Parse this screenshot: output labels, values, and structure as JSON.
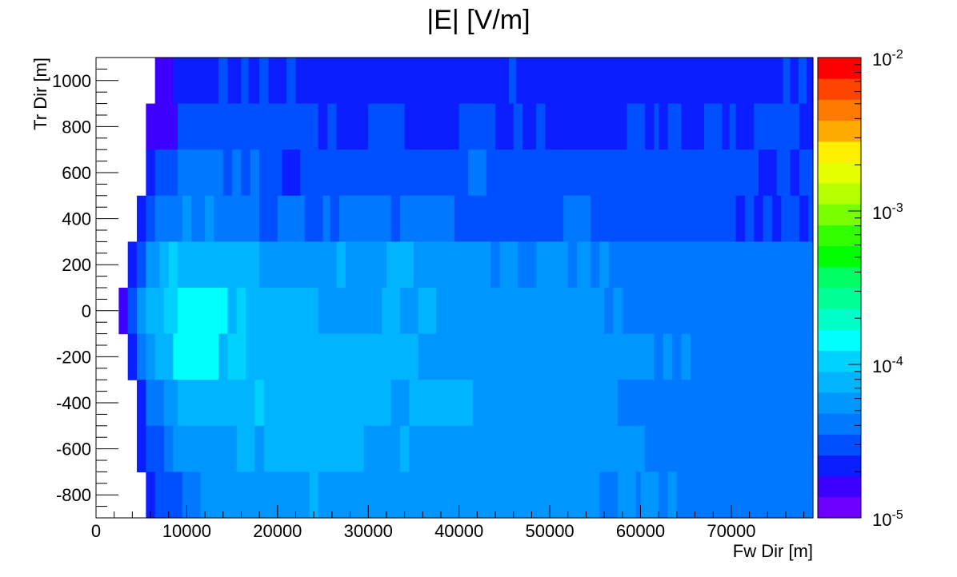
{
  "chart_data": {
    "type": "heatmap",
    "title": "|E| [V/m]",
    "xlabel": "Fw Dir [m]",
    "ylabel": "Tr Dir [m]",
    "xlim": [
      0,
      79000
    ],
    "ylim": [
      -900,
      1100
    ],
    "x_ticks": [
      0,
      10000,
      20000,
      30000,
      40000,
      50000,
      60000,
      70000
    ],
    "y_ticks": [
      -800,
      -600,
      -400,
      -200,
      0,
      200,
      400,
      600,
      800,
      1000
    ],
    "x_tick_labels": [
      "0",
      "10000",
      "20000",
      "30000",
      "40000",
      "50000",
      "60000",
      "70000"
    ],
    "y_tick_labels": [
      "-800",
      "-600",
      "-400",
      "-200",
      "0",
      "200",
      "400",
      "600",
      "800",
      "1000"
    ],
    "log_scale_z": true,
    "zlim": [
      1e-05,
      0.01
    ],
    "colorbar": {
      "labels": [
        {
          "base": "10",
          "exp": "-5",
          "value": 1e-05
        },
        {
          "base": "10",
          "exp": "-4",
          "value": 0.0001
        },
        {
          "base": "10",
          "exp": "-3",
          "value": 0.001
        },
        {
          "base": "10",
          "exp": "-2",
          "value": 0.01
        }
      ],
      "colors": [
        "#6e00ff",
        "#3d00ff",
        "#0a1eff",
        "#0050ff",
        "#0078ff",
        "#0096ff",
        "#00b4ff",
        "#00d2ff",
        "#00ffff",
        "#00ffc8",
        "#00ff96",
        "#00ff64",
        "#00ff00",
        "#32ff00",
        "#78ff00",
        "#b4ff00",
        "#e6ff00",
        "#ffee00",
        "#ffaa00",
        "#ff7a00",
        "#ff4400",
        "#ff0000"
      ]
    },
    "colors": {
      "frame": "#000000",
      "background": "#ffffff"
    },
    "rows": [
      {
        "y0": 900,
        "y1": 1100,
        "cells": [
          [
            6500,
            8500,
            1
          ],
          [
            8500,
            13500,
            2
          ],
          [
            13500,
            14500,
            3
          ],
          [
            14500,
            16000,
            2
          ],
          [
            16000,
            16800,
            3
          ],
          [
            16800,
            18000,
            2
          ],
          [
            18000,
            19000,
            3
          ],
          [
            19000,
            21000,
            2
          ],
          [
            21000,
            22000,
            3
          ],
          [
            22000,
            45500,
            2
          ],
          [
            45500,
            46300,
            3
          ],
          [
            46300,
            75700,
            2
          ],
          [
            75700,
            76500,
            3
          ],
          [
            76500,
            77400,
            2
          ],
          [
            77400,
            78300,
            3
          ],
          [
            78300,
            79000,
            2
          ]
        ]
      },
      {
        "y0": 700,
        "y1": 900,
        "cells": [
          [
            5500,
            7500,
            1
          ],
          [
            7500,
            9000,
            1
          ],
          [
            9000,
            24500,
            3
          ],
          [
            24500,
            25500,
            2
          ],
          [
            25500,
            26500,
            3
          ],
          [
            26500,
            30000,
            2
          ],
          [
            30000,
            34000,
            3
          ],
          [
            34000,
            40000,
            2
          ],
          [
            40000,
            44000,
            3
          ],
          [
            44000,
            46000,
            2
          ],
          [
            46000,
            47000,
            3
          ],
          [
            47000,
            48500,
            2
          ],
          [
            48500,
            49500,
            3
          ],
          [
            49500,
            58500,
            2
          ],
          [
            58500,
            60500,
            3
          ],
          [
            60500,
            61500,
            2
          ],
          [
            61500,
            62000,
            3
          ],
          [
            62000,
            63000,
            2
          ],
          [
            63000,
            64500,
            3
          ],
          [
            64500,
            67000,
            2
          ],
          [
            67000,
            69000,
            3
          ],
          [
            69000,
            69800,
            2
          ],
          [
            69800,
            70500,
            3
          ],
          [
            70500,
            72500,
            2
          ],
          [
            72500,
            77500,
            3
          ],
          [
            77500,
            79000,
            2
          ]
        ]
      },
      {
        "y0": 500,
        "y1": 700,
        "cells": [
          [
            5500,
            6500,
            2
          ],
          [
            6500,
            7500,
            3
          ],
          [
            7500,
            9000,
            3
          ],
          [
            9000,
            14000,
            4
          ],
          [
            14000,
            15000,
            3
          ],
          [
            15000,
            16000,
            4
          ],
          [
            16000,
            17000,
            3
          ],
          [
            17000,
            18000,
            4
          ],
          [
            18000,
            20500,
            3
          ],
          [
            20500,
            22500,
            2
          ],
          [
            22500,
            41000,
            3
          ],
          [
            41000,
            43000,
            4
          ],
          [
            43000,
            73000,
            3
          ],
          [
            73000,
            75000,
            2
          ],
          [
            75000,
            76500,
            3
          ],
          [
            76500,
            77500,
            2
          ],
          [
            77500,
            79000,
            3
          ]
        ]
      },
      {
        "y0": 300,
        "y1": 500,
        "cells": [
          [
            4500,
            5500,
            2
          ],
          [
            5500,
            6500,
            3
          ],
          [
            6500,
            7500,
            4
          ],
          [
            7500,
            9500,
            4
          ],
          [
            9500,
            10500,
            5
          ],
          [
            10500,
            12000,
            4
          ],
          [
            12000,
            13000,
            5
          ],
          [
            13000,
            18000,
            4
          ],
          [
            18000,
            20000,
            3
          ],
          [
            20000,
            23000,
            4
          ],
          [
            23000,
            25000,
            3
          ],
          [
            25000,
            25800,
            4
          ],
          [
            25800,
            26800,
            3
          ],
          [
            26800,
            32500,
            4
          ],
          [
            32500,
            33500,
            3
          ],
          [
            33500,
            39500,
            4
          ],
          [
            39500,
            51500,
            3
          ],
          [
            51500,
            54500,
            4
          ],
          [
            54500,
            70500,
            3
          ],
          [
            70500,
            71500,
            2
          ],
          [
            71500,
            72500,
            3
          ],
          [
            72500,
            73500,
            2
          ],
          [
            73500,
            74500,
            3
          ],
          [
            74500,
            75500,
            2
          ],
          [
            75500,
            77500,
            3
          ],
          [
            77500,
            78500,
            2
          ],
          [
            78500,
            79000,
            3
          ]
        ]
      },
      {
        "y0": 100,
        "y1": 300,
        "cells": [
          [
            3500,
            4500,
            2
          ],
          [
            4500,
            5500,
            3
          ],
          [
            5500,
            6500,
            5
          ],
          [
            6500,
            7000,
            5
          ],
          [
            7000,
            8000,
            6
          ],
          [
            8000,
            9000,
            7
          ],
          [
            9000,
            18000,
            6
          ],
          [
            18000,
            26500,
            5
          ],
          [
            26500,
            27500,
            6
          ],
          [
            27500,
            32000,
            5
          ],
          [
            32000,
            35000,
            6
          ],
          [
            35000,
            43500,
            5
          ],
          [
            43500,
            44500,
            4
          ],
          [
            44500,
            46500,
            5
          ],
          [
            46500,
            48500,
            4
          ],
          [
            48500,
            52000,
            5
          ],
          [
            52000,
            53000,
            4
          ],
          [
            53000,
            54500,
            5
          ],
          [
            54500,
            55500,
            4
          ],
          [
            55500,
            56500,
            5
          ],
          [
            56500,
            57500,
            4
          ],
          [
            57500,
            79000,
            4
          ]
        ]
      },
      {
        "y0": -100,
        "y1": 100,
        "cells": [
          [
            2500,
            3500,
            1
          ],
          [
            3500,
            4500,
            3
          ],
          [
            4500,
            5500,
            5
          ],
          [
            5500,
            6500,
            6
          ],
          [
            6500,
            7500,
            6
          ],
          [
            7500,
            8500,
            7
          ],
          [
            8500,
            9000,
            7
          ],
          [
            9000,
            9500,
            8
          ],
          [
            9500,
            14500,
            8
          ],
          [
            14500,
            15500,
            6
          ],
          [
            15500,
            16500,
            7
          ],
          [
            16500,
            24500,
            6
          ],
          [
            24500,
            31500,
            5
          ],
          [
            31500,
            33500,
            6
          ],
          [
            33500,
            35500,
            5
          ],
          [
            35500,
            37500,
            6
          ],
          [
            37500,
            56000,
            5
          ],
          [
            56000,
            57000,
            4
          ],
          [
            57000,
            58000,
            5
          ],
          [
            58000,
            79000,
            4
          ]
        ]
      },
      {
        "y0": -300,
        "y1": -100,
        "cells": [
          [
            3500,
            4500,
            2
          ],
          [
            4500,
            5500,
            4
          ],
          [
            5500,
            6500,
            5
          ],
          [
            6500,
            8500,
            6
          ],
          [
            8500,
            13500,
            8
          ],
          [
            13500,
            14500,
            6
          ],
          [
            14500,
            16500,
            7
          ],
          [
            16500,
            35500,
            6
          ],
          [
            35500,
            61500,
            5
          ],
          [
            61500,
            62500,
            4
          ],
          [
            62500,
            63500,
            5
          ],
          [
            63500,
            64500,
            4
          ],
          [
            64500,
            65500,
            5
          ],
          [
            65500,
            79000,
            4
          ]
        ]
      },
      {
        "y0": -500,
        "y1": -300,
        "cells": [
          [
            4500,
            5500,
            2
          ],
          [
            5500,
            7500,
            4
          ],
          [
            7500,
            9000,
            5
          ],
          [
            9000,
            17500,
            6
          ],
          [
            17500,
            18500,
            7
          ],
          [
            18500,
            32500,
            6
          ],
          [
            32500,
            34500,
            5
          ],
          [
            34500,
            41500,
            6
          ],
          [
            41500,
            57500,
            5
          ],
          [
            57500,
            79000,
            4
          ]
        ]
      },
      {
        "y0": -700,
        "y1": -500,
        "cells": [
          [
            4500,
            5500,
            2
          ],
          [
            5500,
            7500,
            3
          ],
          [
            7500,
            8500,
            4
          ],
          [
            8500,
            15500,
            5
          ],
          [
            15500,
            17500,
            6
          ],
          [
            17500,
            18500,
            5
          ],
          [
            18500,
            29500,
            6
          ],
          [
            29500,
            33500,
            5
          ],
          [
            33500,
            34500,
            6
          ],
          [
            34500,
            60500,
            5
          ],
          [
            60500,
            79000,
            4
          ]
        ]
      },
      {
        "y0": -900,
        "y1": -700,
        "cells": [
          [
            5500,
            6500,
            2
          ],
          [
            6500,
            7500,
            3
          ],
          [
            7500,
            9500,
            3
          ],
          [
            9500,
            11500,
            4
          ],
          [
            11500,
            23500,
            5
          ],
          [
            23500,
            24500,
            6
          ],
          [
            24500,
            55500,
            5
          ],
          [
            55500,
            57500,
            4
          ],
          [
            57500,
            59500,
            5
          ],
          [
            59500,
            60000,
            4
          ],
          [
            60000,
            62000,
            5
          ],
          [
            62000,
            63000,
            4
          ],
          [
            63000,
            64000,
            5
          ],
          [
            64000,
            79000,
            4
          ]
        ]
      }
    ]
  }
}
